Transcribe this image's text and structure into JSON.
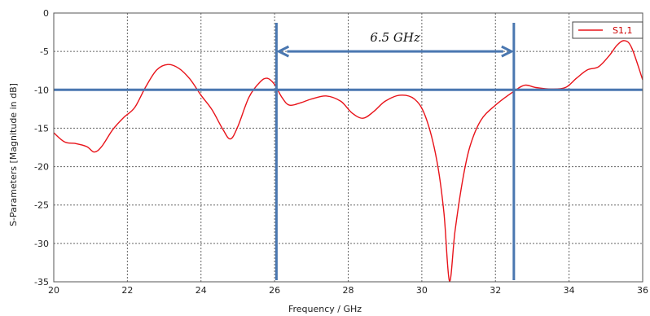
{
  "chart_data": {
    "type": "line",
    "title": "",
    "xlabel": "Frequency / GHz",
    "ylabel": "S-Parameters [Magnitude in dB]",
    "xlim": [
      20,
      36
    ],
    "ylim": [
      -35,
      0
    ],
    "xticks": [
      20,
      22,
      24,
      26,
      28,
      30,
      32,
      34,
      36
    ],
    "yticks": [
      0,
      -5,
      -10,
      -15,
      -20,
      -25,
      -30,
      -35
    ],
    "grid": true,
    "legend": "top-right",
    "series": [
      {
        "name": "S1,1",
        "color": "#e8131a",
        "points": [
          [
            20.0,
            -15.6
          ],
          [
            20.3,
            -16.8
          ],
          [
            20.6,
            -17.0
          ],
          [
            20.9,
            -17.4
          ],
          [
            21.1,
            -18.1
          ],
          [
            21.3,
            -17.4
          ],
          [
            21.6,
            -15.2
          ],
          [
            21.9,
            -13.6
          ],
          [
            22.2,
            -12.3
          ],
          [
            22.5,
            -9.6
          ],
          [
            22.8,
            -7.4
          ],
          [
            23.1,
            -6.7
          ],
          [
            23.4,
            -7.2
          ],
          [
            23.7,
            -8.6
          ],
          [
            24.0,
            -10.7
          ],
          [
            24.3,
            -12.6
          ],
          [
            24.6,
            -15.2
          ],
          [
            24.8,
            -16.4
          ],
          [
            25.0,
            -14.8
          ],
          [
            25.3,
            -11.0
          ],
          [
            25.6,
            -9.0
          ],
          [
            25.8,
            -8.5
          ],
          [
            26.0,
            -9.3
          ],
          [
            26.2,
            -11.0
          ],
          [
            26.4,
            -12.0
          ],
          [
            26.7,
            -11.7
          ],
          [
            27.0,
            -11.2
          ],
          [
            27.4,
            -10.8
          ],
          [
            27.8,
            -11.5
          ],
          [
            28.1,
            -13.0
          ],
          [
            28.4,
            -13.7
          ],
          [
            28.7,
            -12.8
          ],
          [
            29.0,
            -11.5
          ],
          [
            29.4,
            -10.7
          ],
          [
            29.8,
            -11.2
          ],
          [
            30.1,
            -13.5
          ],
          [
            30.4,
            -19.0
          ],
          [
            30.6,
            -26.0
          ],
          [
            30.75,
            -34.9
          ],
          [
            30.9,
            -28.5
          ],
          [
            31.1,
            -22.0
          ],
          [
            31.3,
            -17.5
          ],
          [
            31.6,
            -14.0
          ],
          [
            32.0,
            -12.0
          ],
          [
            32.5,
            -10.2
          ],
          [
            32.8,
            -9.4
          ],
          [
            33.1,
            -9.7
          ],
          [
            33.5,
            -9.9
          ],
          [
            33.9,
            -9.7
          ],
          [
            34.2,
            -8.5
          ],
          [
            34.5,
            -7.4
          ],
          [
            34.8,
            -7.0
          ],
          [
            35.1,
            -5.5
          ],
          [
            35.3,
            -4.2
          ],
          [
            35.5,
            -3.6
          ],
          [
            35.7,
            -4.5
          ],
          [
            36.0,
            -8.7
          ]
        ]
      }
    ],
    "reference_lines": {
      "color": "#4a77b0",
      "horizontal_y": -10,
      "vertical_x": [
        26.05,
        32.5
      ]
    },
    "annotation": {
      "text": "6.5 GHz",
      "arrow_from_x": 26.05,
      "arrow_to_x": 32.5,
      "arrow_y": -5
    }
  }
}
